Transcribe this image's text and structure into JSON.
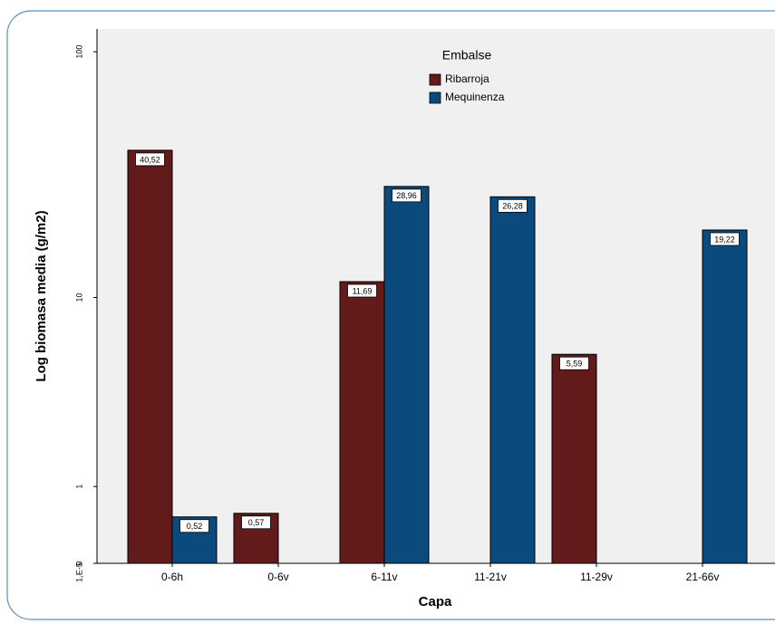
{
  "chart_data": {
    "type": "bar",
    "yscale": "log1p",
    "x_label": "Capa",
    "y_label": "Log biomasa media (g/m2)",
    "legend_title": "Embalse",
    "legend_position": "top",
    "categories": [
      "0-6h",
      "0-6v",
      "6-11v",
      "11-21v",
      "11-29v",
      "21-66v"
    ],
    "series": [
      {
        "name": "Ribarroja",
        "color": "#621a1a",
        "values": [
          40.52,
          0.57,
          11.69,
          null,
          5.59,
          null
        ],
        "value_labels": [
          "40,52",
          "0,57",
          "11,69",
          null,
          "5,59",
          null
        ]
      },
      {
        "name": "Mequinenza",
        "color": "#0b4a7d",
        "values": [
          0.52,
          null,
          28.96,
          26.28,
          null,
          19.22
        ],
        "value_labels": [
          "0,52",
          null,
          "28,96",
          "26,28",
          null,
          "19,22"
        ]
      }
    ],
    "ylim": [
      0,
      120
    ],
    "yticks": [
      0,
      {
        "value": 1e-05,
        "label": "1,E-5"
      },
      1,
      10,
      100
    ]
  }
}
